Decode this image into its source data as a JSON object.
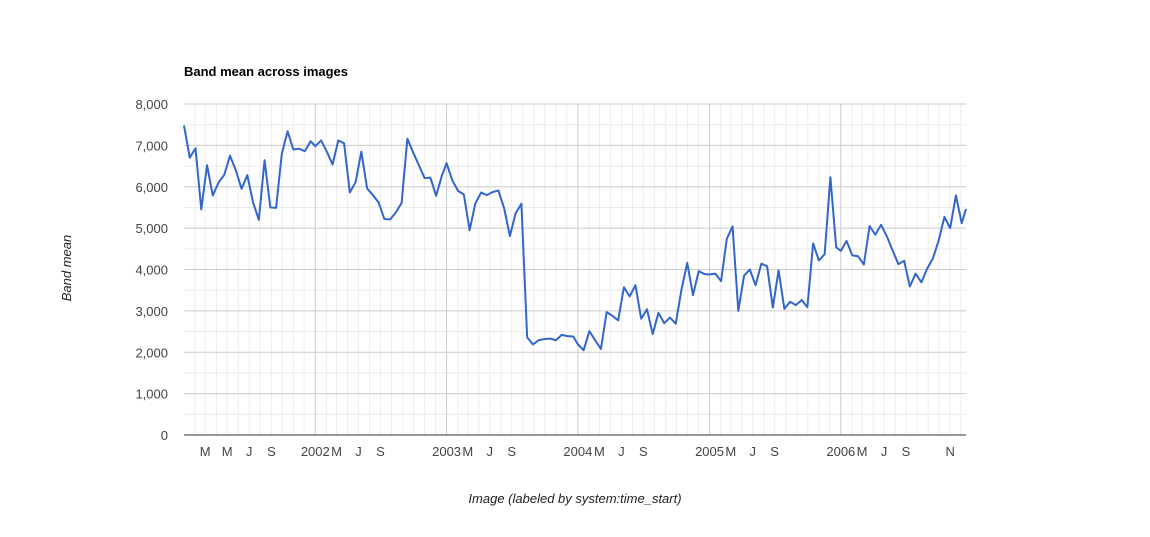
{
  "chart_data": {
    "type": "line",
    "title": "Band mean across images",
    "xlabel": "Image (labeled by system:time_start)",
    "ylabel": "Band mean",
    "ylim": [
      0,
      8000
    ],
    "yticks": [
      "0",
      "1,000",
      "2,000",
      "3,000",
      "4,000",
      "5,000",
      "6,000",
      "7,000",
      "8,000"
    ],
    "xticks": [
      "M",
      "M",
      "J",
      "S",
      "2002",
      "M",
      "J",
      "S",
      "2003",
      "M",
      "J",
      "S",
      "2004",
      "M",
      "J",
      "S",
      "2005",
      "M",
      "J",
      "S",
      "2006",
      "M",
      "J",
      "S",
      "N"
    ],
    "xlim": [
      "2001-01-01",
      "2006-12-15"
    ],
    "grid": true,
    "line_color": "#3366cc",
    "series": [
      {
        "x": [
          "2001-01-01",
          "2001-01-17",
          "2001-02-02",
          "2001-02-18",
          "2001-03-06",
          "2001-03-22",
          "2001-04-07",
          "2001-04-23",
          "2001-05-09",
          "2001-05-25",
          "2001-06-10",
          "2001-06-26",
          "2001-07-12",
          "2001-07-28",
          "2001-08-13",
          "2001-08-29",
          "2001-09-14",
          "2001-09-30",
          "2001-10-16",
          "2001-11-01",
          "2001-11-17",
          "2001-12-03",
          "2001-12-19",
          "2002-01-01",
          "2002-01-17",
          "2002-02-02",
          "2002-02-18",
          "2002-03-06",
          "2002-03-22",
          "2002-04-07",
          "2002-04-23",
          "2002-05-09",
          "2002-05-25",
          "2002-06-10",
          "2002-06-26",
          "2002-07-12",
          "2002-07-28",
          "2002-08-13",
          "2002-08-29",
          "2002-09-14",
          "2002-09-30",
          "2002-10-16",
          "2002-11-01",
          "2002-11-17",
          "2002-12-03",
          "2002-12-19",
          "2003-01-01",
          "2003-01-17",
          "2003-02-02",
          "2003-02-18",
          "2003-03-06",
          "2003-03-22",
          "2003-04-07",
          "2003-04-23",
          "2003-05-09",
          "2003-05-25",
          "2003-06-10",
          "2003-06-26",
          "2003-07-12",
          "2003-07-28",
          "2003-08-13",
          "2003-08-29",
          "2003-09-14",
          "2003-09-30",
          "2003-10-16",
          "2003-11-01",
          "2003-11-17",
          "2003-12-03",
          "2003-12-19",
          "2004-01-01",
          "2004-01-17",
          "2004-02-02",
          "2004-02-18",
          "2004-03-05",
          "2004-03-21",
          "2004-04-06",
          "2004-04-22",
          "2004-05-08",
          "2004-05-24",
          "2004-06-09",
          "2004-06-25",
          "2004-07-11",
          "2004-07-27",
          "2004-08-12",
          "2004-08-28",
          "2004-09-13",
          "2004-09-29",
          "2004-10-15",
          "2004-10-31",
          "2004-11-16",
          "2004-12-02",
          "2004-12-18",
          "2005-01-01",
          "2005-01-17",
          "2005-02-02",
          "2005-02-18",
          "2005-03-06",
          "2005-03-22",
          "2005-04-07",
          "2005-04-23",
          "2005-05-09",
          "2005-05-25",
          "2005-06-10",
          "2005-06-26",
          "2005-07-12",
          "2005-07-28",
          "2005-08-13",
          "2005-08-29",
          "2005-09-14",
          "2005-09-30",
          "2005-10-16",
          "2005-11-01",
          "2005-11-17",
          "2005-12-03",
          "2005-12-19",
          "2006-01-01",
          "2006-01-17",
          "2006-02-02",
          "2006-02-18",
          "2006-03-06",
          "2006-03-22",
          "2006-04-07",
          "2006-04-23",
          "2006-05-09",
          "2006-05-25",
          "2006-06-10",
          "2006-06-26",
          "2006-07-12",
          "2006-07-28",
          "2006-08-13",
          "2006-08-29",
          "2006-09-14",
          "2006-09-30",
          "2006-10-16",
          "2006-11-01",
          "2006-11-17",
          "2006-12-03",
          "2006-12-15"
        ],
        "values": [
          7480,
          6700,
          6930,
          5450,
          6520,
          5790,
          6100,
          6290,
          6750,
          6400,
          5950,
          6280,
          5620,
          5200,
          6640,
          5500,
          5490,
          6800,
          7340,
          6900,
          6920,
          6860,
          7100,
          6980,
          7120,
          6850,
          6540,
          7120,
          7050,
          5860,
          6110,
          6850,
          5960,
          5800,
          5620,
          5220,
          5210,
          5380,
          5610,
          7160,
          6830,
          6520,
          6210,
          6220,
          5780,
          6270,
          6570,
          6150,
          5900,
          5810,
          4950,
          5600,
          5860,
          5800,
          5870,
          5910,
          5480,
          4810,
          5360,
          5590,
          2360,
          2190,
          2290,
          2320,
          2330,
          2290,
          2420,
          2390,
          2380,
          2190,
          2050,
          2510,
          2290,
          2080,
          2970,
          2880,
          2770,
          3570,
          3350,
          3620,
          2810,
          3040,
          2440,
          2950,
          2700,
          2840,
          2690,
          3510,
          4160,
          3380,
          3960,
          3890,
          3880,
          3900,
          3720,
          4740,
          5040,
          3000,
          3850,
          4000,
          3620,
          4140,
          4080,
          3080,
          3980,
          3050,
          3220,
          3140,
          3260,
          3090,
          4630,
          4220,
          4370,
          6230,
          4540,
          4450,
          4690,
          4340,
          4320,
          4120,
          5050,
          4840,
          5080,
          4800,
          4460,
          4130,
          4210,
          3590,
          3900,
          3690,
          4020,
          4270,
          4700,
          5270,
          5000,
          5790,
          5120,
          5460
        ]
      }
    ]
  }
}
